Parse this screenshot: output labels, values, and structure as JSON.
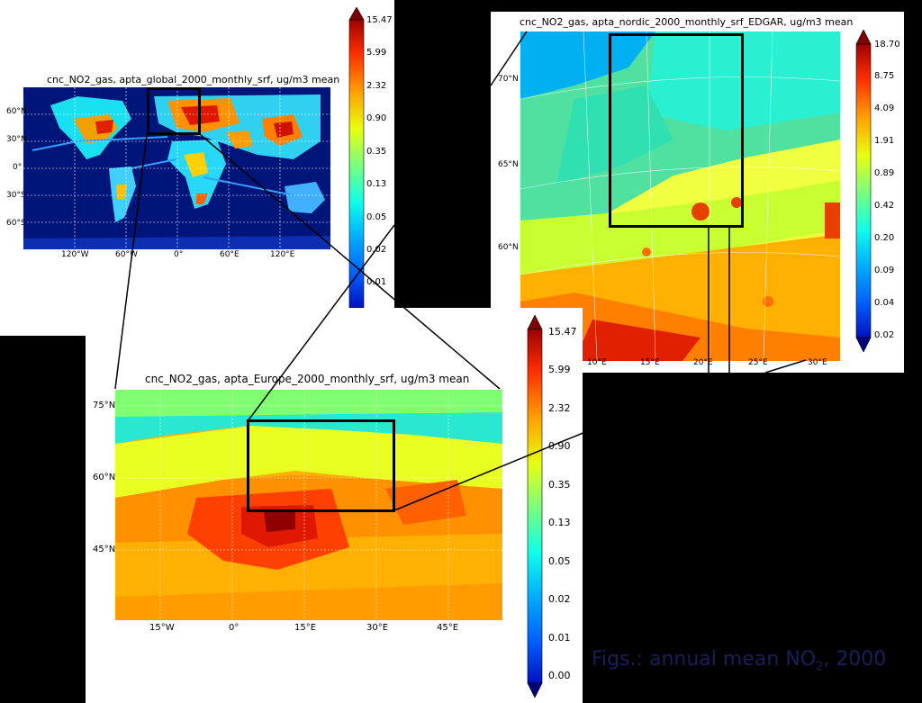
{
  "caption": {
    "prefix": "Figs.: annual mean NO",
    "sub": "2",
    "suffix": ", 2000"
  },
  "global": {
    "title": "cnc_NO2_gas, apta_global_2000_monthly_srf, ug/m3  mean",
    "lat_ticks": [
      "60°N",
      "30°N",
      "0°",
      "30°S",
      "60°S"
    ],
    "lon_ticks": [
      "120°W",
      "60°W",
      "0°",
      "60°E",
      "120°E"
    ],
    "colorbar": [
      "15.47",
      "5.99",
      "2.32",
      "0.90",
      "0.35",
      "0.13",
      "0.05",
      "0.02",
      "0.01"
    ]
  },
  "nordic": {
    "title": "cnc_NO2_gas, apta_nordic_2000_monthly_srf_EDGAR, ug/m3  mean",
    "lat_ticks": [
      "70°N",
      "65°N",
      "60°N"
    ],
    "lon_ticks": [
      "10°E",
      "15°E",
      "20°E",
      "25°E",
      "30°E"
    ],
    "colorbar": [
      "18.70",
      "8.75",
      "4.09",
      "1.91",
      "0.89",
      "0.42",
      "0.20",
      "0.09",
      "0.04",
      "0.02"
    ]
  },
  "europe": {
    "title": "cnc_NO2_gas, apta_Europe_2000_monthly_srf, ug/m3  mean",
    "lat_ticks": [
      "75°N",
      "60°N",
      "45°N"
    ],
    "lon_ticks": [
      "15°W",
      "0°",
      "15°E",
      "30°E",
      "45°E"
    ],
    "colorbar": [
      "15.47",
      "5.99",
      "2.32",
      "0.90",
      "0.35",
      "0.13",
      "0.05",
      "0.02",
      "0.01",
      "0.00"
    ]
  },
  "colors": {
    "jet": [
      "#00007f",
      "#0010ff",
      "#0090ff",
      "#10ffe8",
      "#7dff7a",
      "#e8ff10",
      "#ff9800",
      "#ff1e00",
      "#7f0000"
    ]
  }
}
